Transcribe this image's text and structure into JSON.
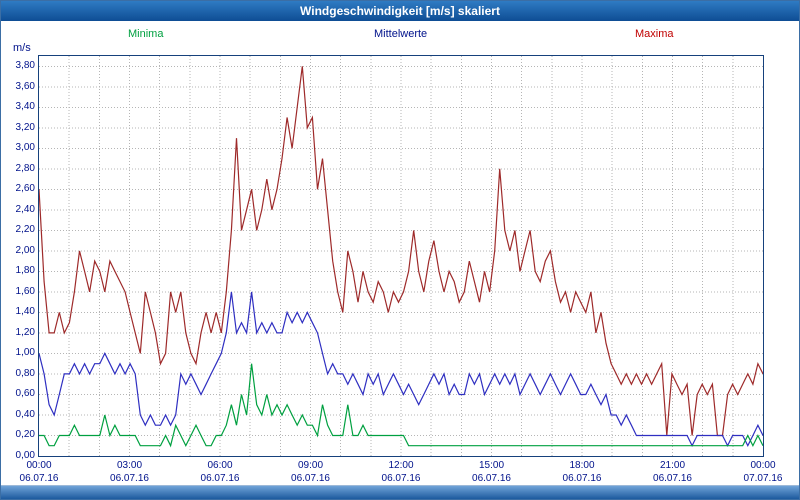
{
  "title_bar": {
    "text": "Windgeschwindigkeit [m/s] skaliert"
  },
  "legend": [
    {
      "label": "Minima",
      "color": "#00a040"
    },
    {
      "label": "Mittelwerte",
      "color": "#00128b"
    },
    {
      "label": "Maxima",
      "color": "#c00000"
    }
  ],
  "chart_data": {
    "type": "line",
    "title": "Windgeschwindigkeit [m/s] skaliert",
    "xlabel": "",
    "ylabel": "m/s",
    "ylim": [
      0,
      3.8
    ],
    "ytick_step": 0.2,
    "ytick_labels": [
      "0,00",
      "0,20",
      "0,40",
      "0,60",
      "0,80",
      "1,00",
      "1,20",
      "1,40",
      "1,60",
      "1,80",
      "2,00",
      "2,20",
      "2,40",
      "2,60",
      "2,80",
      "3,00",
      "3,20",
      "3,40",
      "3,60",
      "3,80"
    ],
    "x_hours": 24,
    "sample_interval_minutes": 10,
    "grid": "dotted",
    "legend_position": "top",
    "xticks": [
      {
        "time": "00:00",
        "date": "06.07.16"
      },
      {
        "time": "03:00",
        "date": "06.07.16"
      },
      {
        "time": "06:00",
        "date": "06.07.16"
      },
      {
        "time": "09:00",
        "date": "06.07.16"
      },
      {
        "time": "12:00",
        "date": "06.07.16"
      },
      {
        "time": "15:00",
        "date": "06.07.16"
      },
      {
        "time": "18:00",
        "date": "06.07.16"
      },
      {
        "time": "21:00",
        "date": "06.07.16"
      },
      {
        "time": "00:00",
        "date": "07.07.16"
      }
    ],
    "series": [
      {
        "name": "Minima",
        "color": "#00a040",
        "values": [
          0.2,
          0.2,
          0.1,
          0.1,
          0.2,
          0.2,
          0.2,
          0.3,
          0.2,
          0.2,
          0.2,
          0.2,
          0.2,
          0.4,
          0.2,
          0.3,
          0.2,
          0.2,
          0.2,
          0.2,
          0.1,
          0.1,
          0.1,
          0.1,
          0.1,
          0.2,
          0.1,
          0.3,
          0.2,
          0.1,
          0.2,
          0.3,
          0.2,
          0.1,
          0.1,
          0.2,
          0.2,
          0.3,
          0.5,
          0.3,
          0.6,
          0.4,
          0.9,
          0.5,
          0.4,
          0.6,
          0.4,
          0.5,
          0.4,
          0.5,
          0.4,
          0.3,
          0.4,
          0.3,
          0.3,
          0.2,
          0.5,
          0.3,
          0.2,
          0.2,
          0.2,
          0.5,
          0.2,
          0.2,
          0.3,
          0.2,
          0.2,
          0.2,
          0.2,
          0.2,
          0.2,
          0.2,
          0.2,
          0.1,
          0.1,
          0.1,
          0.1,
          0.1,
          0.1,
          0.1,
          0.1,
          0.1,
          0.1,
          0.1,
          0.1,
          0.1,
          0.1,
          0.1,
          0.1,
          0.1,
          0.1,
          0.1,
          0.1,
          0.1,
          0.1,
          0.1,
          0.1,
          0.1,
          0.1,
          0.1,
          0.1,
          0.1,
          0.1,
          0.1,
          0.1,
          0.1,
          0.1,
          0.1,
          0.1,
          0.1,
          0.1,
          0.1,
          0.1,
          0.1,
          0.1,
          0.1,
          0.1,
          0.1,
          0.1,
          0.1,
          0.1,
          0.1,
          0.1,
          0.1,
          0.1,
          0.1,
          0.1,
          0.1,
          0.1,
          0.1,
          0.1,
          0.1,
          0.1,
          0.1,
          0.1,
          0.1,
          0.1,
          0.1,
          0.1,
          0.1,
          0.2,
          0.1,
          0.2,
          0.1
        ]
      },
      {
        "name": "Mittelwerte",
        "color": "#2f2fc1",
        "values": [
          1.0,
          0.8,
          0.5,
          0.4,
          0.6,
          0.8,
          0.8,
          0.9,
          0.8,
          0.9,
          0.8,
          0.9,
          0.9,
          1.0,
          0.9,
          0.8,
          0.9,
          0.8,
          0.9,
          0.8,
          0.4,
          0.3,
          0.4,
          0.3,
          0.3,
          0.4,
          0.3,
          0.4,
          0.8,
          0.7,
          0.8,
          0.7,
          0.6,
          0.7,
          0.8,
          0.9,
          1.0,
          1.2,
          1.6,
          1.2,
          1.3,
          1.2,
          1.6,
          1.2,
          1.3,
          1.2,
          1.3,
          1.2,
          1.2,
          1.4,
          1.3,
          1.4,
          1.3,
          1.4,
          1.3,
          1.2,
          1.0,
          0.8,
          0.9,
          0.8,
          0.8,
          0.7,
          0.8,
          0.7,
          0.6,
          0.8,
          0.7,
          0.8,
          0.6,
          0.7,
          0.8,
          0.7,
          0.6,
          0.7,
          0.6,
          0.5,
          0.6,
          0.7,
          0.8,
          0.7,
          0.8,
          0.6,
          0.7,
          0.6,
          0.6,
          0.8,
          0.7,
          0.8,
          0.6,
          0.7,
          0.8,
          0.7,
          0.8,
          0.7,
          0.8,
          0.6,
          0.7,
          0.8,
          0.7,
          0.6,
          0.7,
          0.8,
          0.7,
          0.6,
          0.7,
          0.8,
          0.7,
          0.6,
          0.6,
          0.7,
          0.6,
          0.5,
          0.6,
          0.4,
          0.4,
          0.3,
          0.4,
          0.3,
          0.2,
          0.2,
          0.2,
          0.2,
          0.2,
          0.2,
          0.2,
          0.2,
          0.2,
          0.2,
          0.2,
          0.1,
          0.2,
          0.2,
          0.2,
          0.2,
          0.2,
          0.2,
          0.1,
          0.2,
          0.2,
          0.2,
          0.1,
          0.2,
          0.3,
          0.2
        ]
      },
      {
        "name": "Maxima",
        "color": "#9e2a2a",
        "values": [
          2.6,
          1.7,
          1.2,
          1.2,
          1.4,
          1.2,
          1.3,
          1.6,
          2.0,
          1.8,
          1.6,
          1.9,
          1.8,
          1.6,
          1.9,
          1.8,
          1.7,
          1.6,
          1.4,
          1.2,
          1.0,
          1.6,
          1.4,
          1.2,
          0.9,
          1.0,
          1.6,
          1.4,
          1.6,
          1.2,
          1.0,
          0.9,
          1.2,
          1.4,
          1.2,
          1.4,
          1.2,
          1.6,
          2.2,
          3.1,
          2.2,
          2.4,
          2.6,
          2.2,
          2.4,
          2.7,
          2.4,
          2.6,
          2.9,
          3.3,
          3.0,
          3.4,
          3.8,
          3.2,
          3.3,
          2.6,
          2.9,
          2.4,
          1.9,
          1.6,
          1.4,
          2.0,
          1.8,
          1.5,
          1.8,
          1.6,
          1.5,
          1.7,
          1.6,
          1.4,
          1.6,
          1.5,
          1.6,
          1.8,
          2.2,
          1.8,
          1.6,
          1.9,
          2.1,
          1.8,
          1.6,
          1.8,
          1.7,
          1.5,
          1.6,
          1.9,
          1.7,
          1.5,
          1.8,
          1.6,
          2.0,
          2.8,
          2.2,
          2.0,
          2.2,
          1.8,
          2.0,
          2.2,
          1.8,
          1.7,
          1.9,
          2.0,
          1.7,
          1.5,
          1.6,
          1.4,
          1.6,
          1.5,
          1.4,
          1.6,
          1.2,
          1.4,
          1.1,
          0.9,
          0.8,
          0.7,
          0.8,
          0.7,
          0.8,
          0.7,
          0.8,
          0.7,
          0.8,
          0.9,
          0.2,
          0.8,
          0.7,
          0.6,
          0.7,
          0.2,
          0.6,
          0.7,
          0.6,
          0.7,
          0.2,
          0.2,
          0.6,
          0.7,
          0.6,
          0.7,
          0.8,
          0.7,
          0.9,
          0.8
        ]
      }
    ]
  }
}
